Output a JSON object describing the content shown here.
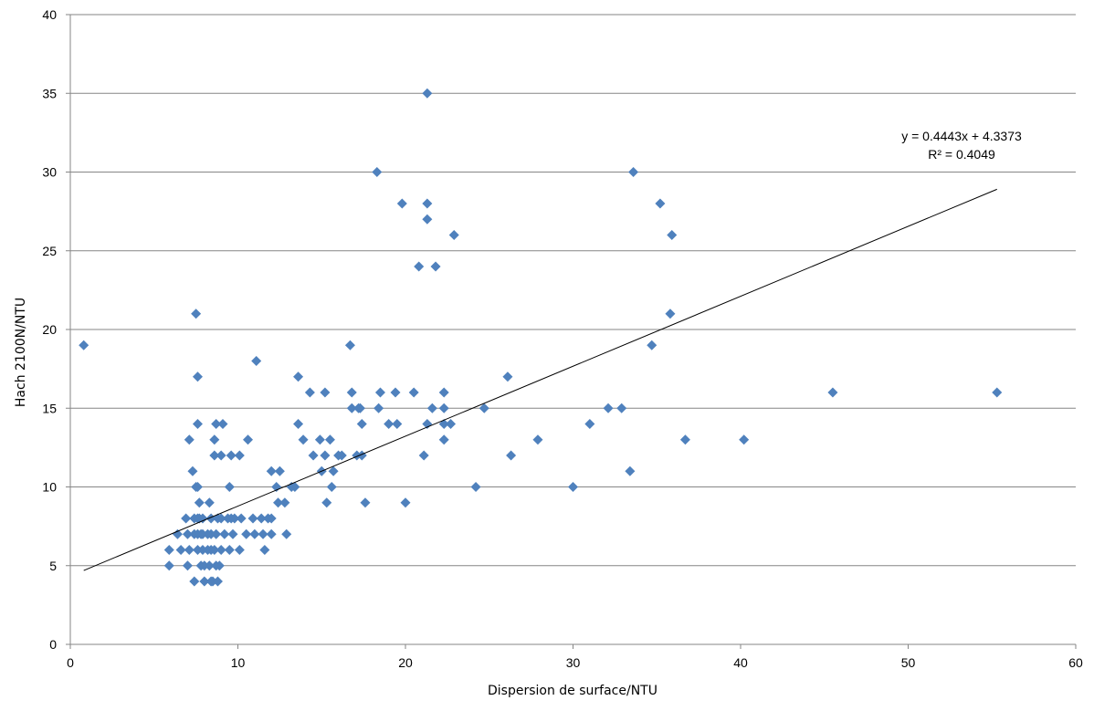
{
  "chart_data": {
    "type": "scatter",
    "title": "",
    "xlabel": "Dispersion de surface/NTU",
    "ylabel": "Hach 2100N/NTU",
    "xlim": [
      0,
      60
    ],
    "ylim": [
      0,
      40
    ],
    "x_ticks": [
      0,
      10,
      20,
      30,
      40,
      50,
      60
    ],
    "y_ticks": [
      0,
      5,
      10,
      15,
      20,
      25,
      30,
      35,
      40
    ],
    "x_tick_labels": [
      "0",
      "10",
      "20",
      "30",
      "40",
      "50",
      "60"
    ],
    "y_tick_labels": [
      "0",
      "5",
      "10",
      "15",
      "20",
      "25",
      "30",
      "35",
      "40"
    ],
    "grid": "horizontal",
    "marker": "diamond",
    "marker_color": "#4F81BD",
    "trendline_color": "#000000",
    "gridline_color": "#868686",
    "trendline": {
      "slope": 0.4443,
      "intercept": 4.3373,
      "x_range": [
        0.8,
        55.3
      ],
      "equation": "y = 0.4443x + 4.3373",
      "r_squared": "R² = 0.4049"
    },
    "points": [
      [
        0.8,
        19
      ],
      [
        5.9,
        6
      ],
      [
        5.9,
        5
      ],
      [
        6.4,
        7
      ],
      [
        6.6,
        6
      ],
      [
        6.9,
        8
      ],
      [
        7.0,
        7
      ],
      [
        7.1,
        6
      ],
      [
        7.0,
        5
      ],
      [
        7.1,
        13
      ],
      [
        7.3,
        11
      ],
      [
        7.4,
        8
      ],
      [
        7.4,
        7
      ],
      [
        7.4,
        4
      ],
      [
        7.5,
        21
      ],
      [
        7.5,
        10
      ],
      [
        7.6,
        17
      ],
      [
        7.6,
        14
      ],
      [
        7.6,
        10
      ],
      [
        7.6,
        8
      ],
      [
        7.6,
        7
      ],
      [
        7.6,
        6
      ],
      [
        7.7,
        9
      ],
      [
        7.7,
        8
      ],
      [
        7.8,
        7
      ],
      [
        7.8,
        5
      ],
      [
        7.9,
        8
      ],
      [
        7.9,
        7
      ],
      [
        7.9,
        6
      ],
      [
        8.0,
        5
      ],
      [
        8.0,
        4
      ],
      [
        8.2,
        7
      ],
      [
        8.2,
        6
      ],
      [
        8.3,
        9
      ],
      [
        8.3,
        5
      ],
      [
        8.4,
        8
      ],
      [
        8.4,
        7
      ],
      [
        8.4,
        6
      ],
      [
        8.4,
        4
      ],
      [
        8.5,
        4
      ],
      [
        8.6,
        13
      ],
      [
        8.6,
        12
      ],
      [
        8.6,
        6
      ],
      [
        8.7,
        14
      ],
      [
        8.7,
        7
      ],
      [
        8.7,
        5
      ],
      [
        8.8,
        8
      ],
      [
        8.8,
        4
      ],
      [
        8.9,
        5
      ],
      [
        9.0,
        12
      ],
      [
        9.0,
        8
      ],
      [
        9.0,
        6
      ],
      [
        9.1,
        14
      ],
      [
        9.2,
        7
      ],
      [
        9.4,
        8
      ],
      [
        9.5,
        10
      ],
      [
        9.5,
        6
      ],
      [
        9.6,
        12
      ],
      [
        9.6,
        8
      ],
      [
        9.7,
        7
      ],
      [
        9.8,
        8
      ],
      [
        10.1,
        12
      ],
      [
        10.1,
        6
      ],
      [
        10.2,
        8
      ],
      [
        10.5,
        7
      ],
      [
        10.6,
        13
      ],
      [
        10.9,
        8
      ],
      [
        11.0,
        7
      ],
      [
        11.1,
        18
      ],
      [
        11.4,
        8
      ],
      [
        11.5,
        7
      ],
      [
        11.6,
        6
      ],
      [
        11.8,
        8
      ],
      [
        12.0,
        11
      ],
      [
        12.0,
        8
      ],
      [
        12.0,
        7
      ],
      [
        12.3,
        10
      ],
      [
        12.4,
        9
      ],
      [
        12.5,
        11
      ],
      [
        12.8,
        9
      ],
      [
        12.9,
        7
      ],
      [
        13.2,
        10
      ],
      [
        13.4,
        10
      ],
      [
        13.6,
        17
      ],
      [
        13.6,
        14
      ],
      [
        13.9,
        13
      ],
      [
        14.3,
        16
      ],
      [
        14.5,
        12
      ],
      [
        14.9,
        13
      ],
      [
        15.0,
        11
      ],
      [
        15.2,
        16
      ],
      [
        15.2,
        12
      ],
      [
        15.3,
        9
      ],
      [
        15.5,
        13
      ],
      [
        15.6,
        10
      ],
      [
        15.7,
        11
      ],
      [
        16.0,
        12
      ],
      [
        16.2,
        12
      ],
      [
        16.7,
        19
      ],
      [
        16.8,
        16
      ],
      [
        16.8,
        15
      ],
      [
        17.1,
        12
      ],
      [
        17.2,
        15
      ],
      [
        17.3,
        15
      ],
      [
        17.4,
        14
      ],
      [
        17.4,
        12
      ],
      [
        17.6,
        9
      ],
      [
        18.3,
        30
      ],
      [
        18.4,
        15
      ],
      [
        18.5,
        16
      ],
      [
        19.0,
        14
      ],
      [
        19.4,
        16
      ],
      [
        19.5,
        14
      ],
      [
        19.8,
        28
      ],
      [
        20.0,
        9
      ],
      [
        20.5,
        16
      ],
      [
        20.8,
        24
      ],
      [
        21.1,
        12
      ],
      [
        21.3,
        14
      ],
      [
        21.3,
        35
      ],
      [
        21.3,
        28
      ],
      [
        21.3,
        27
      ],
      [
        21.6,
        15
      ],
      [
        21.8,
        24
      ],
      [
        22.3,
        16
      ],
      [
        22.3,
        15
      ],
      [
        22.3,
        14
      ],
      [
        22.3,
        13
      ],
      [
        22.7,
        14
      ],
      [
        22.9,
        26
      ],
      [
        24.2,
        10
      ],
      [
        24.7,
        15
      ],
      [
        26.1,
        17
      ],
      [
        26.3,
        12
      ],
      [
        27.9,
        13
      ],
      [
        30.0,
        10
      ],
      [
        31.0,
        14
      ],
      [
        32.1,
        15
      ],
      [
        32.9,
        15
      ],
      [
        33.4,
        11
      ],
      [
        33.6,
        30
      ],
      [
        34.7,
        19
      ],
      [
        35.2,
        28
      ],
      [
        35.8,
        21
      ],
      [
        35.9,
        26
      ],
      [
        36.7,
        13
      ],
      [
        40.2,
        13
      ],
      [
        45.5,
        16
      ],
      [
        55.3,
        16
      ]
    ]
  }
}
